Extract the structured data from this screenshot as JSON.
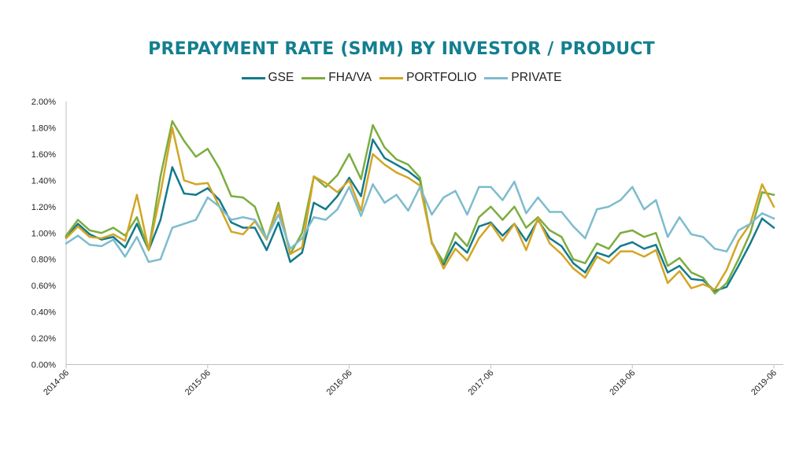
{
  "chart_data": {
    "type": "line",
    "title": "PREPAYMENT RATE (SMM) BY INVESTOR / PRODUCT",
    "xlabel": "",
    "ylabel": "",
    "ylim": [
      0,
      2.0
    ],
    "ytick_values": [
      0,
      0.2,
      0.4,
      0.6,
      0.8,
      1.0,
      1.2,
      1.4,
      1.6,
      1.8,
      2.0
    ],
    "ytick_labels": [
      "0.00%",
      "0.20%",
      "0.40%",
      "0.60%",
      "0.80%",
      "1.00%",
      "1.20%",
      "1.40%",
      "1.60%",
      "1.80%",
      "2.00%"
    ],
    "x_start": "2014-06",
    "x_ticks": [
      {
        "index": 0,
        "label": "2014-06"
      },
      {
        "index": 12,
        "label": "2015-06"
      },
      {
        "index": 24,
        "label": "2016-06"
      },
      {
        "index": 36,
        "label": "2017-06"
      },
      {
        "index": 48,
        "label": "2018-06"
      },
      {
        "index": 60,
        "label": "2019-06"
      }
    ],
    "x_count": 61,
    "legend_position": "top-center",
    "grid": false,
    "title_color": "#137f8f",
    "series": [
      {
        "name": "GSE",
        "color": "#137a8c",
        "values": [
          0.97,
          1.07,
          0.99,
          0.95,
          0.97,
          0.89,
          1.07,
          0.87,
          1.1,
          1.5,
          1.3,
          1.29,
          1.34,
          1.25,
          1.08,
          1.04,
          1.04,
          0.87,
          1.08,
          0.78,
          0.85,
          1.23,
          1.18,
          1.28,
          1.42,
          1.28,
          1.71,
          1.57,
          1.52,
          1.47,
          1.4,
          0.93,
          0.76,
          0.93,
          0.85,
          1.05,
          1.08,
          0.98,
          1.07,
          0.94,
          1.1,
          0.96,
          0.9,
          0.77,
          0.7,
          0.85,
          0.82,
          0.9,
          0.93,
          0.88,
          0.91,
          0.7,
          0.75,
          0.65,
          0.64,
          0.56,
          0.59,
          0.75,
          0.92,
          1.11,
          1.04
        ]
      },
      {
        "name": "FHA/VA",
        "color": "#7cad3f",
        "values": [
          0.98,
          1.1,
          1.02,
          1.0,
          1.04,
          0.98,
          1.12,
          0.87,
          1.43,
          1.85,
          1.7,
          1.58,
          1.64,
          1.49,
          1.28,
          1.27,
          1.2,
          0.95,
          1.23,
          0.84,
          1.0,
          1.43,
          1.35,
          1.44,
          1.6,
          1.41,
          1.82,
          1.65,
          1.56,
          1.52,
          1.42,
          0.92,
          0.78,
          1.0,
          0.9,
          1.12,
          1.2,
          1.1,
          1.2,
          1.04,
          1.12,
          1.02,
          0.97,
          0.8,
          0.77,
          0.92,
          0.88,
          1.0,
          1.02,
          0.97,
          1.0,
          0.75,
          0.81,
          0.7,
          0.66,
          0.54,
          0.62,
          0.8,
          1.0,
          1.31,
          1.29
        ]
      },
      {
        "name": "PORTFOLIO",
        "color": "#d3a526",
        "values": [
          0.96,
          1.05,
          0.97,
          0.96,
          0.99,
          0.94,
          1.29,
          0.87,
          1.3,
          1.8,
          1.4,
          1.37,
          1.38,
          1.2,
          1.01,
          0.99,
          1.09,
          0.95,
          1.2,
          0.84,
          0.89,
          1.43,
          1.38,
          1.31,
          1.4,
          1.17,
          1.6,
          1.52,
          1.46,
          1.42,
          1.36,
          0.93,
          0.73,
          0.88,
          0.79,
          0.96,
          1.07,
          0.94,
          1.07,
          0.87,
          1.11,
          0.92,
          0.84,
          0.73,
          0.66,
          0.82,
          0.77,
          0.86,
          0.86,
          0.82,
          0.87,
          0.62,
          0.71,
          0.58,
          0.61,
          0.57,
          0.72,
          0.94,
          1.07,
          1.37,
          1.2
        ]
      },
      {
        "name": "PRIVATE",
        "color": "#7dbccd",
        "values": [
          0.92,
          0.98,
          0.91,
          0.9,
          0.95,
          0.82,
          0.97,
          0.78,
          0.8,
          1.04,
          1.07,
          1.1,
          1.27,
          1.2,
          1.1,
          1.12,
          1.1,
          0.96,
          1.14,
          0.88,
          0.96,
          1.12,
          1.1,
          1.18,
          1.35,
          1.13,
          1.37,
          1.23,
          1.29,
          1.17,
          1.35,
          1.14,
          1.27,
          1.32,
          1.14,
          1.35,
          1.35,
          1.25,
          1.39,
          1.15,
          1.27,
          1.16,
          1.16,
          1.05,
          0.96,
          1.18,
          1.2,
          1.25,
          1.35,
          1.18,
          1.25,
          0.97,
          1.12,
          0.99,
          0.97,
          0.88,
          0.86,
          1.02,
          1.07,
          1.15,
          1.11
        ]
      }
    ]
  }
}
